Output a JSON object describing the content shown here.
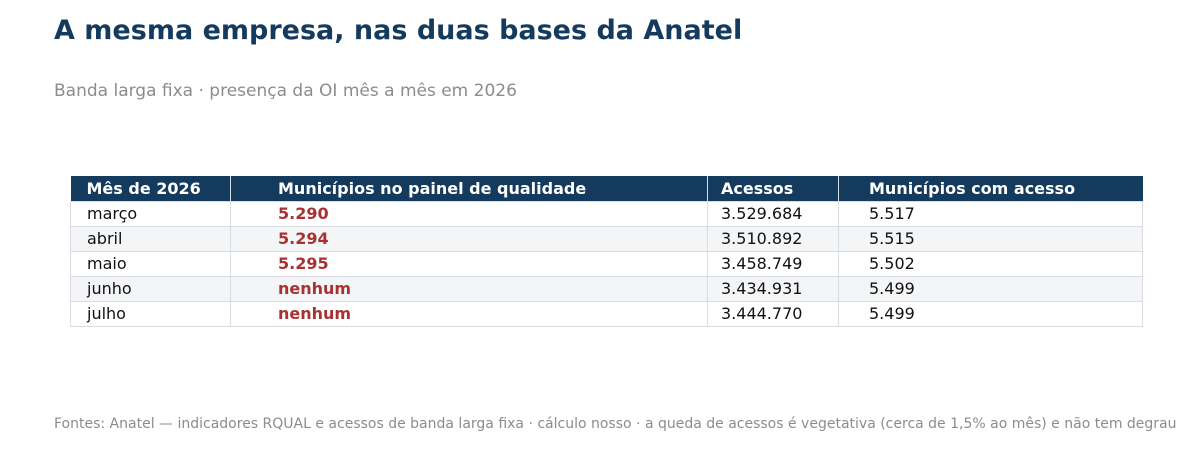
{
  "header": {
    "title": "A mesma empresa, nas duas bases da Anatel",
    "subtitle": "Banda larga fixa · presença da OI mês a mês em 2026"
  },
  "chart_data": {
    "type": "table",
    "columns": [
      "Mês de 2026",
      "Municípios no painel de qualidade",
      "Acessos",
      "Municípios com acesso"
    ],
    "rows": [
      [
        "março",
        "5.290",
        "3.529.684",
        "5.517"
      ],
      [
        "abril",
        "5.294",
        "3.510.892",
        "5.515"
      ],
      [
        "maio",
        "5.295",
        "3.458.749",
        "5.502"
      ],
      [
        "junho",
        "nenhum",
        "3.434.931",
        "5.499"
      ],
      [
        "julho",
        "nenhum",
        "3.444.770",
        "5.499"
      ]
    ],
    "highlight_color": "#a83232",
    "header_color": "#143a5e"
  },
  "footer": {
    "source": "Fontes: Anatel — indicadores RQUAL e acessos de banda larga fixa · cálculo nosso · a queda de acessos é vegetativa (cerca de 1,5% ao mês) e não tem degrau"
  }
}
